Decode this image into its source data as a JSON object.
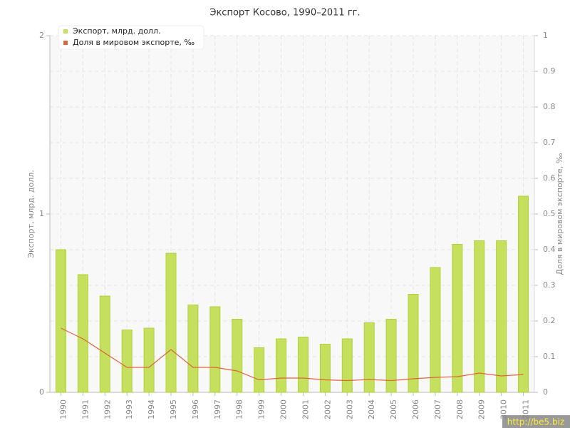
{
  "chart_data": {
    "type": "bar",
    "title": "Экспорт Косово, 1990–2011 гг.",
    "ylabel": "Экспорт, млрд. долл.",
    "y2label": "Доля в мировом экспорте, ‰",
    "categories": [
      "1990",
      "1991",
      "1992",
      "1993",
      "1994",
      "1995",
      "1996",
      "1997",
      "1998",
      "1999",
      "2000",
      "2001",
      "2002",
      "2003",
      "2004",
      "2005",
      "2006",
      "2007",
      "2008",
      "2009",
      "2010",
      "2011"
    ],
    "series": [
      {
        "name": "Экспорт, млрд. долл.",
        "type": "bar",
        "color": "#c4e05c",
        "axis": "y",
        "values": [
          0.8,
          0.66,
          0.54,
          0.35,
          0.36,
          0.78,
          0.49,
          0.48,
          0.41,
          0.25,
          0.3,
          0.31,
          0.27,
          0.3,
          0.39,
          0.41,
          0.55,
          0.7,
          0.83,
          0.85,
          0.85,
          1.1
        ]
      },
      {
        "name": "Доля в мировом экспорте, ‰",
        "type": "line",
        "color": "#e0643a",
        "axis": "y2",
        "values": [
          0.18,
          0.15,
          0.11,
          0.07,
          0.07,
          0.12,
          0.07,
          0.07,
          0.06,
          0.035,
          0.04,
          0.04,
          0.035,
          0.033,
          0.036,
          0.033,
          0.038,
          0.042,
          0.044,
          0.054,
          0.046,
          0.05
        ]
      }
    ],
    "ylim": [
      0,
      2
    ],
    "yticks": [
      0,
      1,
      2
    ],
    "y2lim": [
      0,
      1
    ],
    "y2ticks": [
      0,
      0.1,
      0.2,
      0.3,
      0.4,
      0.5,
      0.6,
      0.7,
      0.8,
      0.9,
      1
    ],
    "grid": true,
    "legend": "top-left",
    "watermark": "http://be5.biz"
  }
}
